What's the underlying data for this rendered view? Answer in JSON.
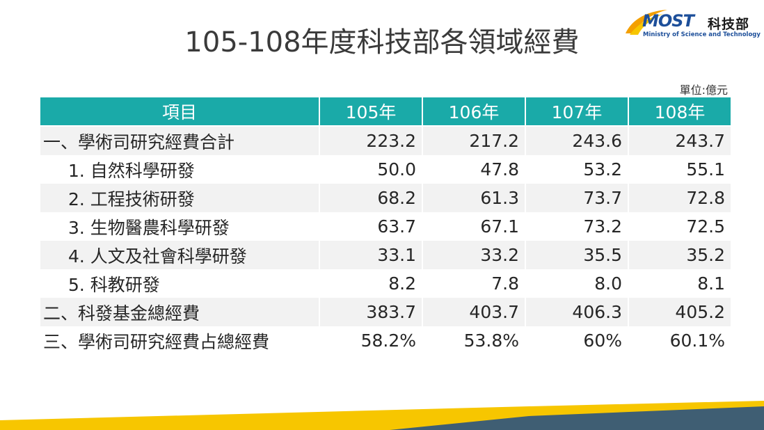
{
  "title": "105-108年度科技部各領域經費",
  "logo": {
    "brand": "MOST",
    "name_zh": "科技部",
    "name_en": "Ministry of Science and Technology"
  },
  "unit": "單位:億元",
  "table": {
    "headers": [
      "項目",
      "105年",
      "106年",
      "107年",
      "108年"
    ],
    "rows": [
      {
        "label": "一、學術司研究經費合計",
        "values": [
          "223.2",
          "217.2",
          "243.6",
          "243.7"
        ]
      },
      {
        "label": "1. 自然科學研發",
        "values": [
          "50.0",
          "47.8",
          "53.2",
          "55.1"
        ]
      },
      {
        "label": "2. 工程技術研發",
        "values": [
          "68.2",
          "61.3",
          "73.7",
          "72.8"
        ]
      },
      {
        "label": "3. 生物醫農科學研發",
        "values": [
          "63.7",
          "67.1",
          "73.2",
          "72.5"
        ]
      },
      {
        "label": "4. 人文及社會科學研發",
        "values": [
          "33.1",
          "33.2",
          "35.5",
          "35.2"
        ]
      },
      {
        "label": "5. 科教研發",
        "values": [
          "8.2",
          "7.8",
          "8.0",
          "8.1"
        ]
      },
      {
        "label": "二、科發基金總經費",
        "values": [
          "383.7",
          "403.7",
          "406.3",
          "405.2"
        ]
      },
      {
        "label": "三、學術司研究經費占總經費",
        "values": [
          "58.2%",
          "53.8%",
          "60%",
          "60.1%"
        ]
      }
    ]
  },
  "colors": {
    "header_bg": "#1aaaa8",
    "row_shade": "#f2f2f2",
    "band_yellow": "#f7c600",
    "band_slate": "#3f5e73"
  }
}
